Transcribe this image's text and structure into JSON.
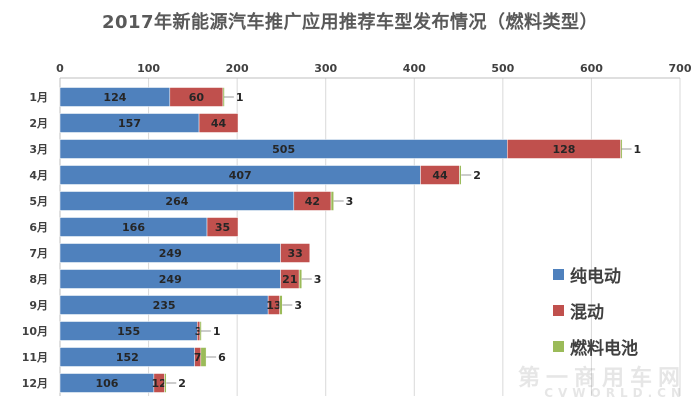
{
  "chart_data": {
    "type": "bar",
    "orientation": "horizontal",
    "stacked": true,
    "title": "2017年新能源汽车推广应用推荐车型发布情况（燃料类型）",
    "categories": [
      "1月",
      "2月",
      "3月",
      "4月",
      "5月",
      "6月",
      "7月",
      "8月",
      "9月",
      "10月",
      "11月",
      "12月"
    ],
    "xlim": [
      0,
      700
    ],
    "x_ticks": [
      0,
      100,
      200,
      300,
      400,
      500,
      600,
      700
    ],
    "grid": true,
    "legend_position": "right",
    "series": [
      {
        "name": "纯电动",
        "color": "#4f81bd",
        "values": [
          124,
          157,
          505,
          407,
          264,
          166,
          249,
          249,
          235,
          155,
          152,
          106
        ]
      },
      {
        "name": "混动",
        "color": "#c0504d",
        "values": [
          60,
          44,
          128,
          44,
          42,
          35,
          33,
          21,
          13,
          3,
          7,
          12
        ]
      },
      {
        "name": "燃料电池",
        "color": "#9bbb59",
        "values": [
          1,
          null,
          1,
          2,
          3,
          null,
          null,
          3,
          3,
          1,
          6,
          2
        ]
      }
    ]
  },
  "watermark": {
    "text_cn": "第一商用车网",
    "text_en": "CVWORLD.CN"
  }
}
